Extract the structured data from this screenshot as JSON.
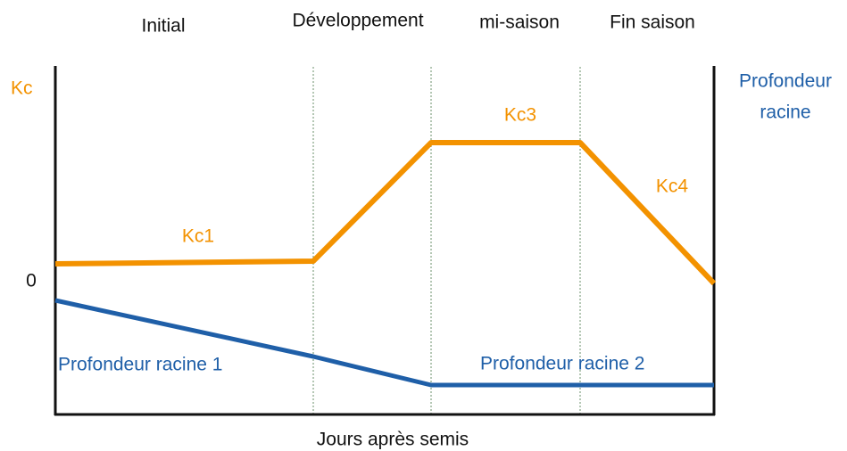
{
  "stages": [
    "Initial",
    "Développement",
    "mi-saison",
    "Fin saison"
  ],
  "left_axis": {
    "label": "Kc",
    "zero": "0"
  },
  "right_axis": {
    "label_lines": [
      "Profondeur",
      "racine"
    ]
  },
  "kc_labels": [
    "Kc1",
    "Kc3",
    "Kc4"
  ],
  "root_labels": [
    "Profondeur racine 1",
    "Profondeur racine 2"
  ],
  "x_axis": {
    "label": "Jours après semis"
  }
}
